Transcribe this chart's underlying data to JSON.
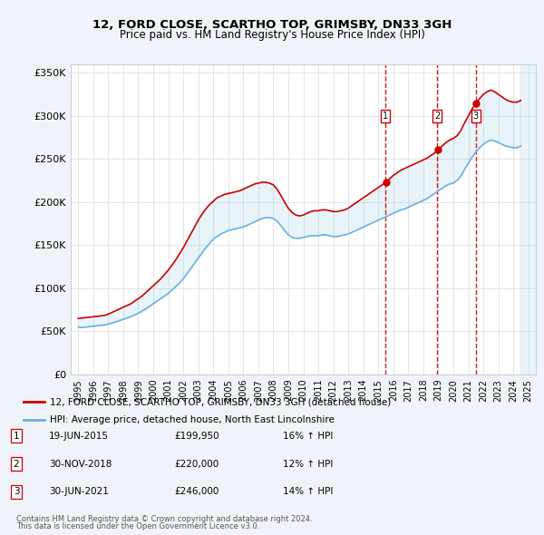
{
  "title": "12, FORD CLOSE, SCARTHO TOP, GRIMSBY, DN33 3GH",
  "subtitle": "Price paid vs. HM Land Registry's House Price Index (HPI)",
  "legend_line1": "12, FORD CLOSE, SCARTHO TOP, GRIMSBY, DN33 3GH (detached house)",
  "legend_line2": "HPI: Average price, detached house, North East Lincolnshire",
  "footer1": "Contains HM Land Registry data © Crown copyright and database right 2024.",
  "footer2": "This data is licensed under the Open Government Licence v3.0.",
  "transactions": [
    {
      "num": "1",
      "date": "19-JUN-2015",
      "price": "£199,950",
      "hpi": "16% ↑ HPI",
      "x": 2015.47
    },
    {
      "num": "2",
      "date": "30-NOV-2018",
      "price": "£220,000",
      "hpi": "12% ↑ HPI",
      "x": 2018.92
    },
    {
      "num": "3",
      "date": "30-JUN-2021",
      "price": "£246,000",
      "hpi": "14% ↑ HPI",
      "x": 2021.5
    }
  ],
  "hpi_color": "#6ab0e0",
  "price_color": "#cc0000",
  "vline_color": "#cc0000",
  "background_color": "#f0f4fa",
  "plot_bg": "#ffffff",
  "ylim": [
    0,
    360000
  ],
  "xlim_start": 1994.5,
  "xlim_end": 2025.5,
  "yticks": [
    0,
    50000,
    100000,
    150000,
    200000,
    250000,
    300000,
    350000
  ],
  "ytick_labels": [
    "£0",
    "£50K",
    "£100K",
    "£150K",
    "£200K",
    "£250K",
    "£300K",
    "£350K"
  ],
  "xticks": [
    1995,
    1996,
    1997,
    1998,
    1999,
    2000,
    2001,
    2002,
    2003,
    2004,
    2005,
    2006,
    2007,
    2008,
    2009,
    2010,
    2011,
    2012,
    2013,
    2014,
    2015,
    2016,
    2017,
    2018,
    2019,
    2020,
    2021,
    2022,
    2023,
    2024,
    2025
  ],
  "hpi_data_x": [
    1995.0,
    1995.25,
    1995.5,
    1995.75,
    1996.0,
    1996.25,
    1996.5,
    1996.75,
    1997.0,
    1997.25,
    1997.5,
    1997.75,
    1998.0,
    1998.25,
    1998.5,
    1998.75,
    1999.0,
    1999.25,
    1999.5,
    1999.75,
    2000.0,
    2000.25,
    2000.5,
    2000.75,
    2001.0,
    2001.25,
    2001.5,
    2001.75,
    2002.0,
    2002.25,
    2002.5,
    2002.75,
    2003.0,
    2003.25,
    2003.5,
    2003.75,
    2004.0,
    2004.25,
    2004.5,
    2004.75,
    2005.0,
    2005.25,
    2005.5,
    2005.75,
    2006.0,
    2006.25,
    2006.5,
    2006.75,
    2007.0,
    2007.25,
    2007.5,
    2007.75,
    2008.0,
    2008.25,
    2008.5,
    2008.75,
    2009.0,
    2009.25,
    2009.5,
    2009.75,
    2010.0,
    2010.25,
    2010.5,
    2010.75,
    2011.0,
    2011.25,
    2011.5,
    2011.75,
    2012.0,
    2012.25,
    2012.5,
    2012.75,
    2013.0,
    2013.25,
    2013.5,
    2013.75,
    2014.0,
    2014.25,
    2014.5,
    2014.75,
    2015.0,
    2015.25,
    2015.5,
    2015.75,
    2016.0,
    2016.25,
    2016.5,
    2016.75,
    2017.0,
    2017.25,
    2017.5,
    2017.75,
    2018.0,
    2018.25,
    2018.5,
    2018.75,
    2019.0,
    2019.25,
    2019.5,
    2019.75,
    2020.0,
    2020.25,
    2020.5,
    2020.75,
    2021.0,
    2021.25,
    2021.5,
    2021.75,
    2022.0,
    2022.25,
    2022.5,
    2022.75,
    2023.0,
    2023.25,
    2023.5,
    2023.75,
    2024.0,
    2024.25,
    2024.5
  ],
  "hpi_data_y": [
    55000,
    54500,
    55000,
    55500,
    56000,
    56500,
    57000,
    57500,
    58500,
    59500,
    61000,
    62500,
    64000,
    65500,
    67000,
    69000,
    71000,
    73500,
    76000,
    79000,
    82000,
    85000,
    88000,
    91000,
    94000,
    98000,
    102000,
    106000,
    111000,
    117000,
    123000,
    129000,
    135000,
    141000,
    147000,
    152000,
    157000,
    160000,
    163000,
    165000,
    167000,
    168000,
    169000,
    170000,
    171000,
    173000,
    175000,
    177000,
    179000,
    181000,
    182000,
    182000,
    181000,
    178000,
    173000,
    167000,
    162000,
    159000,
    158000,
    158000,
    159000,
    160000,
    161000,
    161000,
    161000,
    162000,
    162000,
    161000,
    160000,
    160000,
    161000,
    162000,
    163000,
    165000,
    167000,
    169000,
    171000,
    173000,
    175000,
    177000,
    179000,
    181000,
    183000,
    185000,
    187000,
    189000,
    191000,
    192000,
    194000,
    196000,
    198000,
    200000,
    202000,
    204000,
    207000,
    210000,
    213000,
    216000,
    219000,
    221000,
    222000,
    225000,
    230000,
    238000,
    245000,
    252000,
    258000,
    263000,
    267000,
    270000,
    272000,
    271000,
    269000,
    267000,
    265000,
    264000,
    263000,
    263000,
    265000
  ],
  "price_data_x": [
    1995.0,
    1995.25,
    1995.5,
    1995.75,
    1996.0,
    1996.25,
    1996.5,
    1996.75,
    1997.0,
    1997.25,
    1997.5,
    1997.75,
    1998.0,
    1998.25,
    1998.5,
    1998.75,
    1999.0,
    1999.25,
    1999.5,
    1999.75,
    2000.0,
    2000.25,
    2000.5,
    2000.75,
    2001.0,
    2001.25,
    2001.5,
    2001.75,
    2002.0,
    2002.25,
    2002.5,
    2002.75,
    2003.0,
    2003.25,
    2003.5,
    2003.75,
    2004.0,
    2004.25,
    2004.5,
    2004.75,
    2005.0,
    2005.25,
    2005.5,
    2005.75,
    2006.0,
    2006.25,
    2006.5,
    2006.75,
    2007.0,
    2007.25,
    2007.5,
    2007.75,
    2008.0,
    2008.25,
    2008.5,
    2008.75,
    2009.0,
    2009.25,
    2009.5,
    2009.75,
    2010.0,
    2010.25,
    2010.5,
    2010.75,
    2011.0,
    2011.25,
    2011.5,
    2011.75,
    2012.0,
    2012.25,
    2012.5,
    2012.75,
    2013.0,
    2013.25,
    2013.5,
    2013.75,
    2014.0,
    2014.25,
    2014.5,
    2014.75,
    2015.0,
    2015.25,
    2015.5,
    2015.75,
    2016.0,
    2016.25,
    2016.5,
    2016.75,
    2017.0,
    2017.25,
    2017.5,
    2017.75,
    2018.0,
    2018.25,
    2018.5,
    2018.75,
    2019.0,
    2019.25,
    2019.5,
    2019.75,
    2020.0,
    2020.25,
    2020.5,
    2020.75,
    2021.0,
    2021.25,
    2021.5,
    2021.75,
    2022.0,
    2022.25,
    2022.5,
    2022.75,
    2023.0,
    2023.25,
    2023.5,
    2023.75,
    2024.0,
    2024.25,
    2024.5
  ],
  "price_data_y": [
    65000,
    65500,
    66000,
    66500,
    67000,
    67500,
    68000,
    68500,
    70000,
    72000,
    74000,
    76000,
    78000,
    80000,
    82000,
    85000,
    88000,
    91000,
    95000,
    99000,
    103000,
    107000,
    111000,
    116000,
    121000,
    127000,
    133000,
    140000,
    147000,
    155000,
    163000,
    171000,
    179000,
    186000,
    192000,
    197000,
    201000,
    205000,
    207000,
    209000,
    210000,
    211000,
    212000,
    213000,
    215000,
    217000,
    219000,
    221000,
    222000,
    223000,
    223000,
    222000,
    220000,
    215000,
    208000,
    200000,
    193000,
    188000,
    185000,
    184000,
    185000,
    187000,
    189000,
    190000,
    190000,
    191000,
    191000,
    190000,
    189000,
    189000,
    190000,
    191000,
    193000,
    196000,
    199000,
    202000,
    205000,
    208000,
    211000,
    214000,
    217000,
    220000,
    223000,
    227000,
    231000,
    234000,
    237000,
    239000,
    241000,
    243000,
    245000,
    247000,
    249000,
    251000,
    254000,
    257000,
    261000,
    265000,
    269000,
    272000,
    274000,
    277000,
    283000,
    292000,
    300000,
    308000,
    315000,
    320000,
    325000,
    328000,
    330000,
    328000,
    325000,
    322000,
    319000,
    317000,
    316000,
    316000,
    318000
  ]
}
